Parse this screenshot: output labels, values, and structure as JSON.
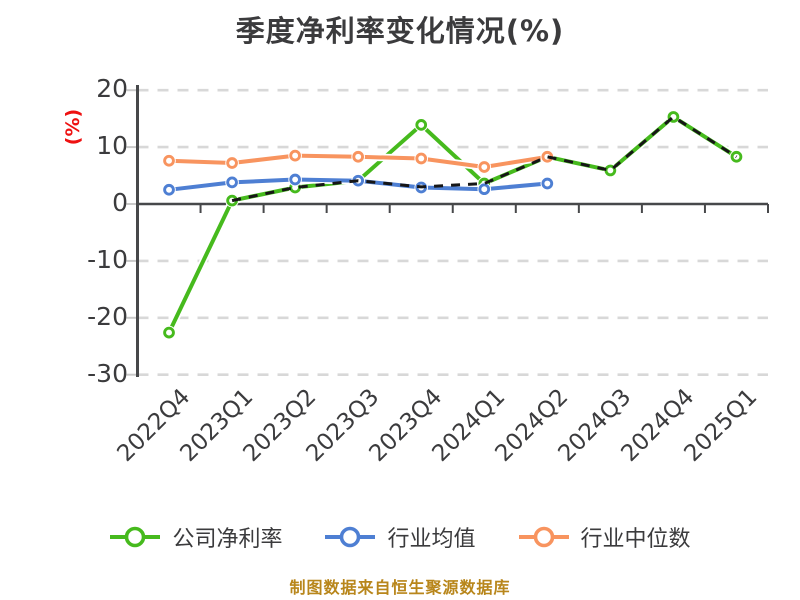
{
  "header": {
    "title": "季度净利率变化情况(%)"
  },
  "footer": {
    "caption": "制图数据来自恒生聚源数据库"
  },
  "colors": {
    "company": "#46ba1d",
    "industry_avg": "#4e7fd3",
    "industry_median": "#f8945f",
    "overlay_dash": "#161616",
    "gridline": "#d8d8d8",
    "axis": "#47484a",
    "y_tick": "#c9c9c9",
    "text": "#3b3b3d",
    "unit_label": "#ee1111",
    "caption": "#b8861b",
    "background": "#ffffff",
    "marker_fill": "#ffffff"
  },
  "chart_data": {
    "type": "line",
    "title": "季度净利率变化情况(%)",
    "y_unit": "(%)",
    "categories": [
      "2022Q4",
      "2023Q1",
      "2023Q2",
      "2023Q3",
      "2023Q4",
      "2024Q1",
      "2024Q2",
      "2024Q3",
      "2024Q4",
      "2025Q1"
    ],
    "y_ticks": [
      20,
      10,
      0,
      -10,
      -20,
      -30
    ],
    "ylim": [
      -30,
      20
    ],
    "grid": "horizontal dashed lines, x-axis drawn at 0 with tick marks",
    "legend_position": "bottom",
    "series": [
      {
        "name": "公司净利率",
        "color": "#46ba1d",
        "style": "solid",
        "in_legend": true,
        "values": [
          -22.6,
          0.6,
          2.9,
          4.1,
          13.9,
          3.6,
          8.3,
          5.9,
          15.3,
          8.3
        ]
      },
      {
        "name": "行业均值",
        "color": "#4e7fd3",
        "style": "solid",
        "in_legend": true,
        "values": [
          2.5,
          3.8,
          4.3,
          4.1,
          2.9,
          2.6,
          3.6,
          null,
          null,
          null
        ]
      },
      {
        "name": "行业中位数",
        "color": "#f8945f",
        "style": "solid",
        "in_legend": true,
        "values": [
          7.6,
          7.2,
          8.5,
          8.3,
          8.0,
          6.5,
          8.3,
          null,
          null,
          null
        ]
      },
      {
        "name": "",
        "color": "#161616",
        "style": "dashed",
        "in_legend": false,
        "values": [
          null,
          0.6,
          2.9,
          4.1,
          3.0,
          3.6,
          8.3,
          5.9,
          15.3,
          8.3
        ]
      }
    ]
  }
}
